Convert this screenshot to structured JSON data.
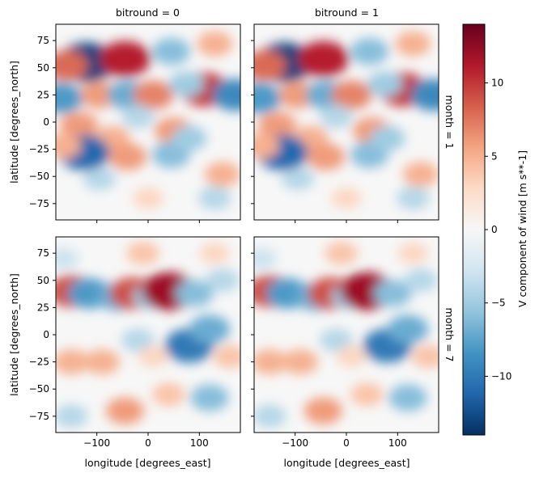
{
  "chart_data": {
    "type": "heatmap",
    "layout": "facet-grid 2x2",
    "col_var_titles": [
      "bitround = 0",
      "bitround = 1"
    ],
    "row_var_titles": [
      "month = 1",
      "month = 7"
    ],
    "xlabel": "longitude [degrees_east]",
    "ylabel": "latitude [degrees_north]",
    "xlim": [
      -180,
      180
    ],
    "ylim": [
      -90,
      90
    ],
    "xticks": [
      -100,
      0,
      100
    ],
    "yticks": [
      75,
      50,
      25,
      0,
      -25,
      -50,
      -75
    ],
    "colorbar": {
      "label": "V component of wind [m s**-1]",
      "colormap": "RdBu_r",
      "vmin": -14,
      "vmax": 14,
      "ticks": [
        10,
        5,
        0,
        -5,
        -10
      ],
      "colors": [
        "#67001f",
        "#b2182b",
        "#d6604d",
        "#f4a582",
        "#fddbc7",
        "#f7f7f7",
        "#d1e5f0",
        "#92c5de",
        "#4393c3",
        "#2166ac",
        "#053061"
      ]
    },
    "features": [
      {
        "month": 1,
        "lon": -120,
        "lat": 55,
        "v": -13
      },
      {
        "month": 1,
        "lon": -45,
        "lat": 58,
        "v": 11
      },
      {
        "month": 1,
        "lon": -160,
        "lat": 52,
        "v": 8
      },
      {
        "month": 1,
        "lon": 45,
        "lat": 65,
        "v": -6
      },
      {
        "month": 1,
        "lon": 130,
        "lat": 72,
        "v": 5
      },
      {
        "month": 1,
        "lon": -170,
        "lat": 22,
        "v": -8
      },
      {
        "month": 1,
        "lon": -95,
        "lat": 25,
        "v": 6
      },
      {
        "month": 1,
        "lon": -40,
        "lat": 25,
        "v": -7
      },
      {
        "month": 1,
        "lon": 10,
        "lat": 25,
        "v": 7
      },
      {
        "month": 1,
        "lon": 110,
        "lat": 30,
        "v": 10
      },
      {
        "month": 1,
        "lon": 170,
        "lat": 25,
        "v": -9
      },
      {
        "month": 1,
        "lon": 75,
        "lat": 35,
        "v": -5
      },
      {
        "month": 1,
        "lon": -135,
        "lat": -3,
        "v": 6
      },
      {
        "month": 1,
        "lon": -70,
        "lat": -15,
        "v": 5
      },
      {
        "month": 1,
        "lon": 50,
        "lat": -8,
        "v": 6
      },
      {
        "month": 1,
        "lon": -95,
        "lat": -52,
        "v": -4
      },
      {
        "month": 1,
        "lon": 145,
        "lat": -48,
        "v": 5
      },
      {
        "month": 1,
        "lon": -125,
        "lat": -28,
        "v": -11
      },
      {
        "month": 1,
        "lon": -165,
        "lat": -22,
        "v": 5
      },
      {
        "month": 1,
        "lon": -40,
        "lat": -32,
        "v": 6
      },
      {
        "month": 1,
        "lon": 45,
        "lat": -30,
        "v": -6
      },
      {
        "month": 1,
        "lon": 80,
        "lat": -15,
        "v": -5
      },
      {
        "month": 1,
        "lon": 0,
        "lat": -70,
        "v": 3
      },
      {
        "month": 1,
        "lon": 130,
        "lat": -70,
        "v": -4
      },
      {
        "month": 1,
        "lon": -20,
        "lat": 5,
        "v": -4
      },
      {
        "month": 7,
        "lon": -150,
        "lat": 40,
        "v": 9
      },
      {
        "month": 7,
        "lon": -115,
        "lat": 38,
        "v": -8
      },
      {
        "month": 7,
        "lon": -60,
        "lat": 35,
        "v": -7
      },
      {
        "month": 7,
        "lon": -30,
        "lat": 38,
        "v": 9
      },
      {
        "month": 7,
        "lon": 5,
        "lat": 35,
        "v": -5
      },
      {
        "month": 7,
        "lon": 40,
        "lat": 40,
        "v": 12
      },
      {
        "month": 7,
        "lon": 90,
        "lat": 38,
        "v": -6
      },
      {
        "month": 7,
        "lon": 145,
        "lat": 50,
        "v": -4
      },
      {
        "month": 7,
        "lon": -10,
        "lat": 75,
        "v": 4
      },
      {
        "month": 7,
        "lon": 130,
        "lat": 75,
        "v": 3
      },
      {
        "month": 7,
        "lon": -165,
        "lat": 70,
        "v": -3
      },
      {
        "month": 7,
        "lon": 80,
        "lat": -10,
        "v": -10
      },
      {
        "month": 7,
        "lon": 120,
        "lat": 5,
        "v": -7
      },
      {
        "month": 7,
        "lon": -20,
        "lat": -5,
        "v": -4
      },
      {
        "month": 7,
        "lon": -150,
        "lat": -25,
        "v": 5
      },
      {
        "month": 7,
        "lon": -90,
        "lat": -25,
        "v": 5
      },
      {
        "month": 7,
        "lon": -45,
        "lat": -70,
        "v": 6
      },
      {
        "month": 7,
        "lon": -150,
        "lat": -75,
        "v": -4
      },
      {
        "month": 7,
        "lon": 120,
        "lat": -58,
        "v": -6
      },
      {
        "month": 7,
        "lon": 40,
        "lat": -55,
        "v": 4
      },
      {
        "month": 7,
        "lon": 160,
        "lat": -20,
        "v": 4
      },
      {
        "month": 7,
        "lon": 10,
        "lat": -20,
        "v": 3
      }
    ]
  }
}
